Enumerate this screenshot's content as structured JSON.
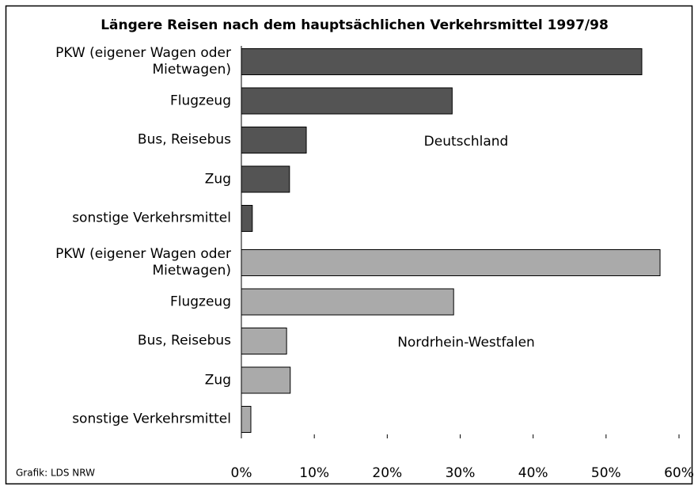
{
  "chart_data": {
    "type": "bar",
    "orientation": "horizontal",
    "title": "Längere Reisen nach dem hauptsächlichen Verkehrsmittel 1997/98",
    "source": "Grafik: LDS NRW",
    "categories": [
      "PKW (eigener Wagen oder Mietwagen)",
      "Flugzeug",
      "Bus, Reisebus",
      "Zug",
      "sonstige Verkehrsmittel"
    ],
    "series": [
      {
        "name": "Deutschland",
        "color": "#545454",
        "values": [
          54.9,
          28.9,
          8.9,
          6.6,
          1.5
        ]
      },
      {
        "name": "Nordrhein-Westfalen",
        "color": "#aaaaaa",
        "values": [
          57.4,
          29.1,
          6.2,
          6.7,
          1.3
        ]
      }
    ],
    "xlim": [
      0,
      60
    ],
    "xticks": [
      {
        "value": 0,
        "label": "0%"
      },
      {
        "value": 10,
        "label": "10%"
      },
      {
        "value": 20,
        "label": "20%"
      },
      {
        "value": 30,
        "label": "30%"
      },
      {
        "value": 40,
        "label": "40%"
      },
      {
        "value": 50,
        "label": "50%"
      },
      {
        "value": 60,
        "label": "60%"
      }
    ]
  }
}
